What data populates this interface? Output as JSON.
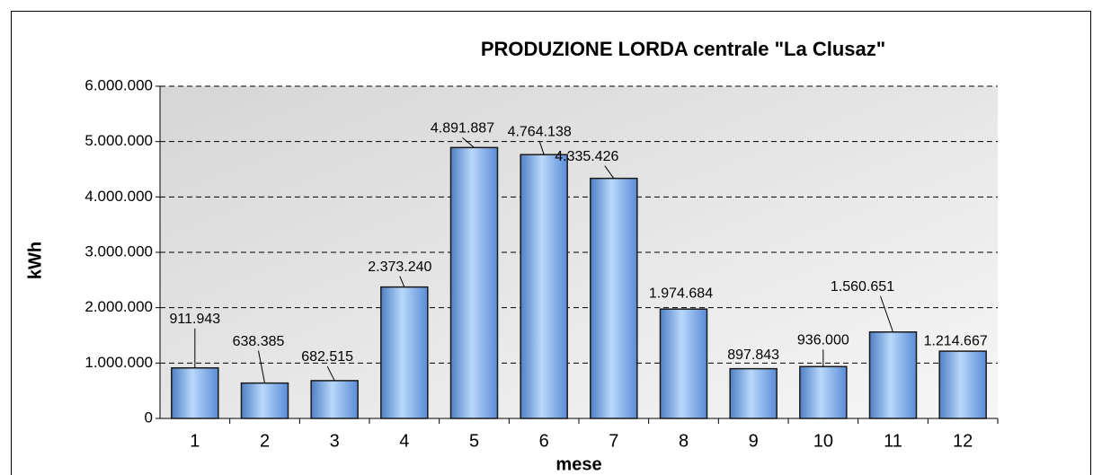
{
  "chart_data": {
    "type": "bar",
    "title": "PRODUZIONE LORDA centrale \"La Clusaz\"",
    "x_label": "mese",
    "y_label": "kWh",
    "categories": [
      "1",
      "2",
      "3",
      "4",
      "5",
      "6",
      "7",
      "8",
      "9",
      "10",
      "11",
      "12"
    ],
    "values": [
      911943,
      638385,
      682515,
      2373240,
      4891887,
      4764138,
      4335426,
      1974684,
      897843,
      936000,
      1560651,
      1214667
    ],
    "value_labels": [
      "911.943",
      "638.385",
      "682.515",
      "2.373.240",
      "4.891.887",
      "4.764.138",
      "4.335.426",
      "1.974.684",
      "897.843",
      "936.000",
      "1.560.651",
      "1.214.667"
    ],
    "color": "#7aa9e6",
    "ylim": [
      0,
      6000000
    ],
    "yticks": [
      0,
      {
        "value": 1000000,
        "label": "1.000.000"
      },
      {
        "value": 2000000,
        "label": "2.000.000"
      },
      {
        "value": 3000000,
        "label": "3.000.000"
      },
      {
        "value": 4000000,
        "label": "4.000.000"
      },
      {
        "value": 5000000,
        "label": "5.000.000"
      },
      {
        "value": 6000000,
        "label": "6.000.000"
      }
    ],
    "grid": true
  }
}
